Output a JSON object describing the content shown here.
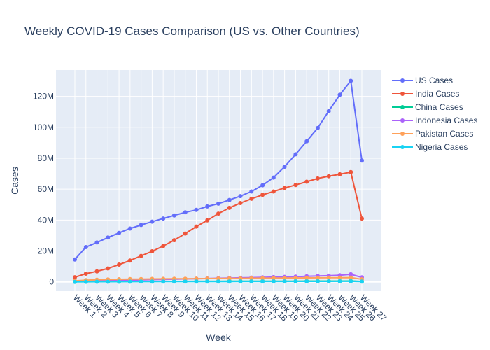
{
  "chart_data": {
    "type": "line",
    "title": "Weekly COVID-19 Cases Comparison (US vs. Other Countries)",
    "xlabel": "Week",
    "ylabel": "Cases",
    "ylim": [
      -6000000,
      137000000
    ],
    "yticks": [
      0,
      20000000,
      40000000,
      60000000,
      80000000,
      100000000,
      120000000
    ],
    "ytick_labels": [
      "0",
      "20M",
      "40M",
      "60M",
      "80M",
      "100M",
      "120M"
    ],
    "grid": true,
    "legend_position": "top-right",
    "categories": [
      "Week 1",
      "Week 2",
      "Week 3",
      "Week 4",
      "Week 5",
      "Week 6",
      "Week 7",
      "Week 8",
      "Week 9",
      "Week 10",
      "Week 11",
      "Week 12",
      "Week 13",
      "Week 14",
      "Week 15",
      "Week 16",
      "Week 17",
      "Week 18",
      "Week 19",
      "Week 20",
      "Week 21",
      "Week 22",
      "Week 23",
      "Week 24",
      "Week 25",
      "Week 26",
      "Week 27"
    ],
    "series": [
      {
        "name": "US Cases",
        "color": "#636efa",
        "values": [
          14500000,
          22500000,
          25500000,
          28700000,
          31700000,
          34500000,
          36800000,
          39000000,
          41000000,
          43000000,
          45000000,
          46600000,
          48800000,
          50600000,
          53000000,
          55500000,
          58500000,
          62500000,
          67500000,
          74500000,
          82500000,
          91000000,
          99500000,
          110500000,
          121000000,
          130000000,
          78500000
        ]
      },
      {
        "name": "India Cases",
        "color": "#ef553b",
        "values": [
          3000000,
          5300000,
          6800000,
          8700000,
          11200000,
          13800000,
          16800000,
          19800000,
          23200000,
          27000000,
          31300000,
          35800000,
          39800000,
          44200000,
          47900000,
          51000000,
          53800000,
          56300000,
          58500000,
          60800000,
          62700000,
          64800000,
          66900000,
          68400000,
          69600000,
          71000000,
          41000000
        ]
      },
      {
        "name": "China Cases",
        "color": "#00cc96",
        "values": [
          100000,
          150000,
          200000,
          220000,
          250000,
          270000,
          290000,
          300000,
          320000,
          340000,
          350000,
          360000,
          380000,
          400000,
          420000,
          430000,
          450000,
          460000,
          470000,
          480000,
          490000,
          500000,
          510000,
          520000,
          530000,
          540000,
          300000
        ]
      },
      {
        "name": "Indonesia Cases",
        "color": "#ab63fa",
        "values": [
          200000,
          400000,
          600000,
          800000,
          1000000,
          1150000,
          1300000,
          1450000,
          1600000,
          1750000,
          1900000,
          2050000,
          2200000,
          2350000,
          2500000,
          2650000,
          2800000,
          2950000,
          3100000,
          3250000,
          3400000,
          3600000,
          3800000,
          4000000,
          4300000,
          4900000,
          2900000
        ]
      },
      {
        "name": "Pakistan Cases",
        "color": "#ffa15a",
        "values": [
          700000,
          1100000,
          1400000,
          1600000,
          1700000,
          1800000,
          1850000,
          1900000,
          1950000,
          2000000,
          2050000,
          2100000,
          2150000,
          2200000,
          2250000,
          2300000,
          2350000,
          2400000,
          2450000,
          2500000,
          2550000,
          2600000,
          2650000,
          2700000,
          2750000,
          2800000,
          1700000
        ]
      },
      {
        "name": "Nigeria Cases",
        "color": "#19d3f3",
        "values": [
          0,
          50000,
          100000,
          120000,
          150000,
          170000,
          180000,
          190000,
          200000,
          210000,
          220000,
          230000,
          240000,
          250000,
          260000,
          270000,
          280000,
          290000,
          300000,
          310000,
          320000,
          330000,
          340000,
          350000,
          360000,
          370000,
          200000
        ]
      }
    ]
  }
}
